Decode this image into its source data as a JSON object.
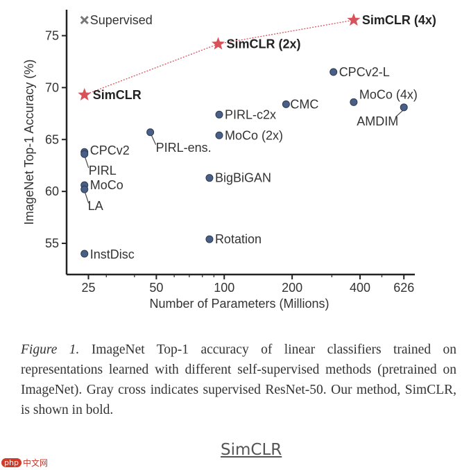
{
  "chart_data": {
    "type": "scatter",
    "xlabel": "Number of Parameters (Millions)",
    "ylabel": "ImageNet Top-1 Accuracy (%)",
    "x_scale": "log",
    "xlim": [
      20,
      700
    ],
    "ylim": [
      52,
      77.5
    ],
    "x_ticks": [
      25,
      50,
      100,
      200,
      400,
      626
    ],
    "y_ticks": [
      55,
      60,
      65,
      70,
      75
    ],
    "grid": false,
    "colors": {
      "point": "#4a5f86",
      "simclr": "#d8525a",
      "supervised": "#777777"
    },
    "points": [
      {
        "label": "CPCv2-L",
        "x": 305,
        "y": 71.5
      },
      {
        "label": "MoCo (4x)",
        "x": 375,
        "y": 68.6
      },
      {
        "label": "AMDIM",
        "x": 626,
        "y": 68.1
      },
      {
        "label": "CMC",
        "x": 188,
        "y": 68.4
      },
      {
        "label": "PIRL-c2x",
        "x": 95,
        "y": 67.4
      },
      {
        "label": "MoCo (2x)",
        "x": 95,
        "y": 65.4
      },
      {
        "label": "PIRL-ens.",
        "x": 47,
        "y": 65.7
      },
      {
        "label": "CPCv2",
        "x": 24,
        "y": 63.8
      },
      {
        "label": "PIRL",
        "x": 24,
        "y": 63.6
      },
      {
        "label": "BigBiGAN",
        "x": 86,
        "y": 61.3
      },
      {
        "label": "MoCo",
        "x": 24,
        "y": 60.6
      },
      {
        "label": "LA",
        "x": 24,
        "y": 60.2
      },
      {
        "label": "Rotation",
        "x": 86,
        "y": 55.4
      },
      {
        "label": "InstDisc",
        "x": 24,
        "y": 54.0
      }
    ],
    "simclr": [
      {
        "label": "SimCLR",
        "x": 24,
        "y": 69.3
      },
      {
        "label": "SimCLR (2x)",
        "x": 94,
        "y": 74.2
      },
      {
        "label": "SimCLR (4x)",
        "x": 375,
        "y": 76.5
      }
    ],
    "supervised": {
      "label": "Supervised",
      "x": 24,
      "y": 76.5
    }
  },
  "caption": {
    "label": "Figure 1.",
    "text": "ImageNet Top-1 accuracy of linear classifiers trained on representations learned with different self-supervised methods (pretrained on ImageNet). Gray cross indicates supervised ResNet-50. Our method, SimCLR, is shown in bold."
  },
  "footer": {
    "link": "SimCLR"
  },
  "watermark": {
    "badge": "php",
    "text": "中文网"
  }
}
